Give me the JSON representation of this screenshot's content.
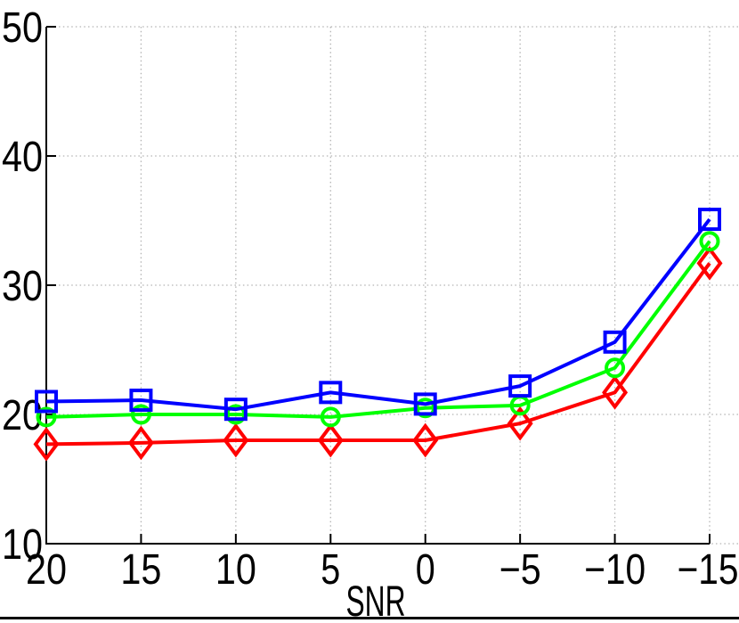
{
  "figure": {
    "background": "#ffffff",
    "bottom_rule_color": "#000000"
  },
  "chart_data": {
    "type": "line",
    "title": "",
    "xlabel": "SNR",
    "ylabel": "",
    "x": [
      20,
      15,
      10,
      5,
      0,
      -5,
      -10,
      -15
    ],
    "x_axis_reversed": true,
    "x_tick_labels": [
      "20",
      "15",
      "10",
      "5",
      "0",
      "−5",
      "−10",
      "−15"
    ],
    "y_ticks": [
      50,
      40,
      30,
      20,
      10
    ],
    "y_tick_labels": [
      "50",
      "40",
      "30",
      "20",
      "10"
    ],
    "ylim": [
      10,
      50
    ],
    "grid": true,
    "grid_style": "dotted",
    "legend": "none",
    "grid_color": "#b3b3b3",
    "axis_color": "#000000",
    "series": [
      {
        "name": "red-diamond-series",
        "color": "#ff0000",
        "marker": "diamond",
        "values": [
          17.7,
          17.8,
          18.0,
          18.0,
          18.0,
          19.3,
          21.7,
          31.7
        ]
      },
      {
        "name": "green-circle-series",
        "color": "#00ff00",
        "marker": "circle",
        "values": [
          19.8,
          20.0,
          20.0,
          19.8,
          20.5,
          20.7,
          23.6,
          33.4
        ]
      },
      {
        "name": "blue-square-series",
        "color": "#0000ff",
        "marker": "square",
        "values": [
          21.0,
          21.1,
          20.4,
          21.7,
          20.8,
          22.2,
          25.6,
          35.1
        ]
      }
    ]
  }
}
